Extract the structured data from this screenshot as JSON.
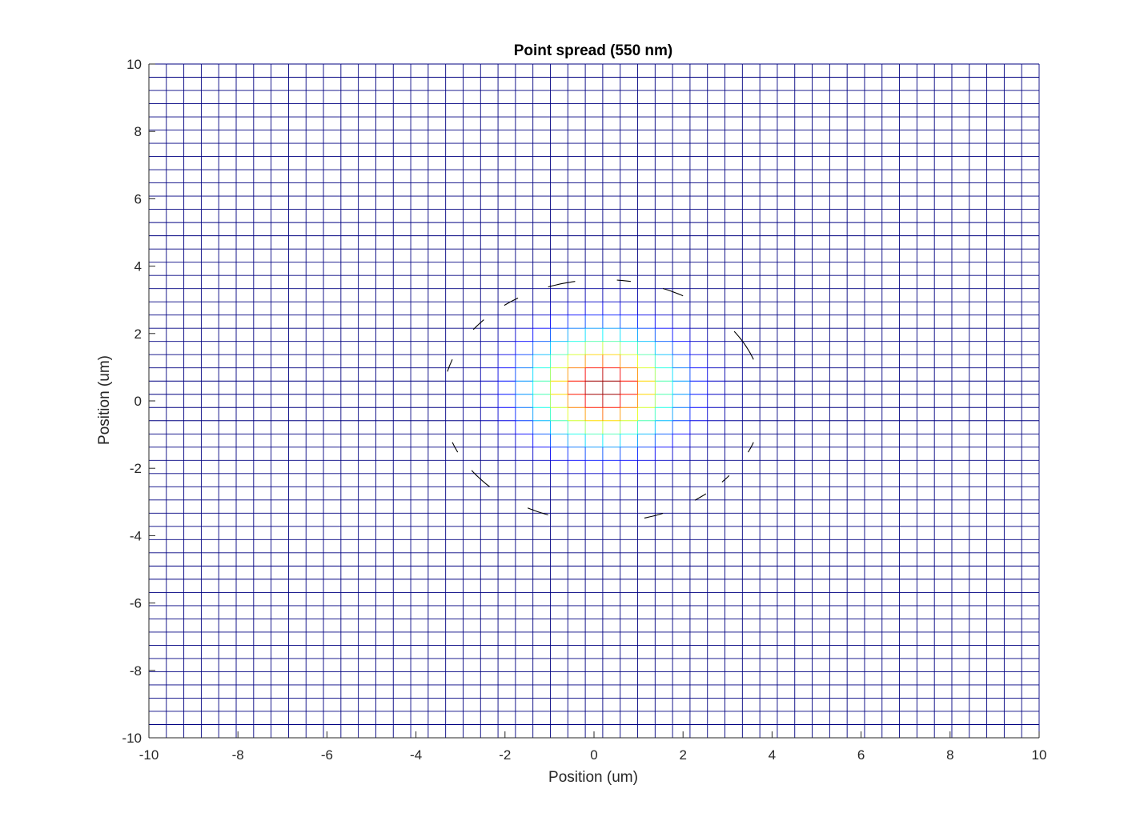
{
  "chart_data": {
    "type": "mesh",
    "title": "Point spread (550 nm)",
    "xlabel": "Position (um)",
    "ylabel": "Position (um)",
    "xlim": [
      -10,
      10
    ],
    "ylim": [
      -10,
      10
    ],
    "xticks": [
      "-10",
      "-8",
      "-6",
      "-4",
      "-2",
      "0",
      "2",
      "4",
      "6",
      "8",
      "10"
    ],
    "yticks": [
      "-10",
      "-8",
      "-6",
      "-4",
      "-2",
      "0",
      "2",
      "4",
      "6",
      "8",
      "10"
    ],
    "grid_cells_per_axis": 51,
    "colormap": "jet",
    "surface": {
      "function": "gaussian",
      "peak_center": [
        0.2,
        0.4
      ],
      "sigma_um": 1.1
    },
    "ring_radius_um": 3.6,
    "grid": true,
    "colors": {
      "low": "#00008f",
      "background": "#ffffff",
      "text": "#262626",
      "ring": "#000000"
    }
  }
}
